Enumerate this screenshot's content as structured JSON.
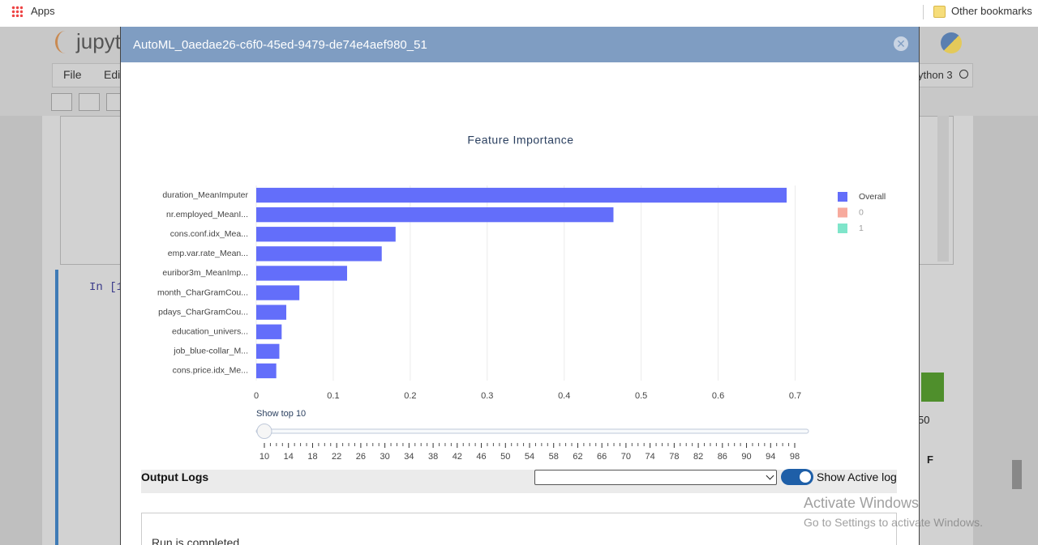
{
  "browser": {
    "apps": "Apps",
    "bookmarks": "Other bookmarks"
  },
  "notebook": {
    "logo": "jupyt",
    "menu": [
      "File",
      "Edi"
    ],
    "kernel": "ython 3",
    "prompt": "In [1",
    "side_label": "50",
    "side_letter": "F"
  },
  "modal": {
    "title": "AutoML_0aedae26-c6f0-45ed-9479-de74e4aef980_51"
  },
  "chart_data": {
    "type": "bar",
    "orientation": "horizontal",
    "title": "Feature Importance",
    "categories": [
      "duration_MeanImputer",
      "nr.employed_MeanI...",
      "cons.conf.idx_Mea...",
      "emp.var.rate_Mean...",
      "euribor3m_MeanImp...",
      "month_CharGramCou...",
      "pdays_CharGramCou...",
      "education_univers...",
      "job_blue-collar_M...",
      "cons.price.idx_Me..."
    ],
    "series": [
      {
        "name": "Overall",
        "color": "#636efa",
        "values": [
          0.689,
          0.464,
          0.181,
          0.163,
          0.118,
          0.056,
          0.039,
          0.033,
          0.03,
          0.026
        ]
      },
      {
        "name": "0",
        "color": "#ef553b",
        "visible": false
      },
      {
        "name": "1",
        "color": "#00cc96",
        "visible": false
      }
    ],
    "xlim": [
      0,
      0.71
    ],
    "xticks": [
      0,
      0.1,
      0.2,
      0.3,
      0.4,
      0.5,
      0.6,
      0.7
    ],
    "grid": true,
    "legend": "right"
  },
  "slider": {
    "label": "Show top",
    "value": 10,
    "ticks": [
      10,
      14,
      18,
      22,
      26,
      30,
      34,
      38,
      42,
      46,
      50,
      54,
      58,
      62,
      66,
      70,
      74,
      78,
      82,
      86,
      90,
      94,
      98
    ]
  },
  "logs": {
    "title": "Output Logs",
    "toggle_label": "Show Active log",
    "message": "Run is completed."
  },
  "watermark": {
    "title": "Activate Windows",
    "subtitle": "Go to Settings to activate Windows."
  }
}
